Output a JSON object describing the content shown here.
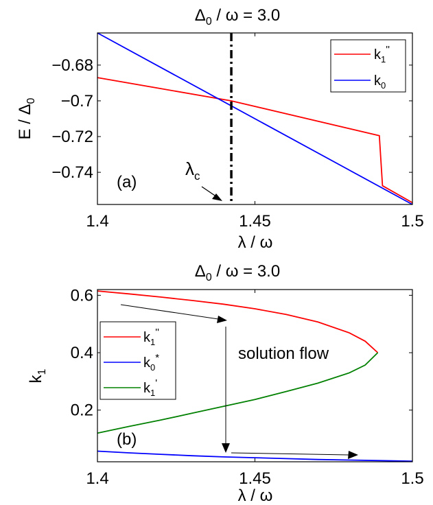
{
  "chart_data": [
    {
      "type": "line",
      "title_base": "Δ",
      "title_sub": "0",
      "title_rest": " / ω = 3.0",
      "ylabel_base": "E / Δ",
      "ylabel_sub": "0",
      "xlabel": "λ / ω",
      "xlim": [
        1.4,
        1.5
      ],
      "ylim": [
        -0.758,
        -0.662
      ],
      "xticks": [
        1.4,
        1.45,
        1.5
      ],
      "xtick_labels": [
        "1.4",
        "1.45",
        "1.5"
      ],
      "yticks": [
        -0.68,
        -0.7,
        -0.72,
        -0.74
      ],
      "ytick_labels": [
        "−0.68",
        "−0.7",
        "−0.72",
        "−0.74"
      ],
      "panel_label": "(a)",
      "vline_x": 1.4425,
      "annotation_base": "λ",
      "annotation_sub": "c",
      "legend_position": "top-right",
      "series": [
        {
          "name_base": "k",
          "name_sub": "1",
          "name_sup": "''",
          "color": "#ff0000",
          "x": [
            1.4,
            1.4425,
            1.4895,
            1.4905,
            1.5
          ],
          "y": [
            -0.687,
            -0.7,
            -0.7195,
            -0.7475,
            -0.757
          ]
        },
        {
          "name_base": "k",
          "name_sub": "0",
          "name_sup": "",
          "color": "#0000ff",
          "x": [
            1.4,
            1.5
          ],
          "y": [
            -0.662,
            -0.758
          ]
        }
      ]
    },
    {
      "type": "line",
      "title_base": "Δ",
      "title_sub": "0",
      "title_rest": " / ω = 3.0",
      "ylabel_base": "k",
      "ylabel_sub": "1",
      "xlabel": "λ / ω",
      "xlim": [
        1.4,
        1.5
      ],
      "ylim": [
        0.02,
        0.62
      ],
      "xticks": [
        1.4,
        1.45,
        1.5
      ],
      "xtick_labels": [
        "1.4",
        "1.45",
        "1.5"
      ],
      "yticks": [
        0.6,
        0.4,
        0.2
      ],
      "ytick_labels": [
        "0.6",
        "0.4",
        "0.2"
      ],
      "panel_label": "(b)",
      "annotation": "solution flow",
      "legend_position": "middle-left",
      "series": [
        {
          "name_base": "k",
          "name_sub": "1",
          "name_sup": "''",
          "color": "#ff0000",
          "x": [
            1.4,
            1.41,
            1.42,
            1.43,
            1.44,
            1.45,
            1.46,
            1.47,
            1.48,
            1.485,
            1.489
          ],
          "y": [
            0.615,
            0.605,
            0.594,
            0.582,
            0.569,
            0.553,
            0.533,
            0.507,
            0.469,
            0.44,
            0.4
          ]
        },
        {
          "name_base": "k",
          "name_sub": "0",
          "name_sup": "*",
          "color": "#0000ff",
          "x": [
            1.4,
            1.41,
            1.42,
            1.43,
            1.44,
            1.45,
            1.46,
            1.47,
            1.48,
            1.49,
            1.5
          ],
          "y": [
            0.057,
            0.051,
            0.046,
            0.041,
            0.037,
            0.034,
            0.031,
            0.028,
            0.026,
            0.024,
            0.022
          ]
        },
        {
          "name_base": "k",
          "name_sub": "1",
          "name_sup": "'",
          "color": "#008000",
          "x": [
            1.4,
            1.41,
            1.42,
            1.43,
            1.44,
            1.45,
            1.46,
            1.47,
            1.48,
            1.485,
            1.489
          ],
          "y": [
            0.12,
            0.143,
            0.165,
            0.189,
            0.213,
            0.237,
            0.265,
            0.294,
            0.33,
            0.357,
            0.4
          ]
        }
      ]
    }
  ]
}
